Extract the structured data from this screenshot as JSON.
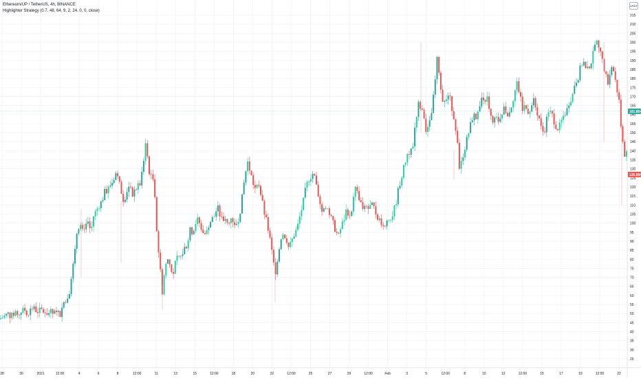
{
  "header": {
    "symbol_line": "Ethereum/UP / TetherUS, 4h, BINANCE",
    "indicator_line": "Highlighter Strategy (0.7, 48, 64, 9, 2, 24, 0, 0, close)",
    "currency": "USDT"
  },
  "colors": {
    "up": "#26a69a",
    "up_bright": "#22d3a0",
    "down": "#ef5350",
    "grid": "#f0f3fa",
    "crosshair": "#b2dfdb",
    "last_price_bg": "#26a69a",
    "low_price_bg": "#ef5350"
  },
  "price_labels": {
    "crosshair_value": "161.854",
    "low_value": "126.894"
  },
  "chart_data": {
    "type": "candlestick",
    "title": "Ethereum/UP / TetherUS, 4h, BINANCE",
    "ylim": [
      20,
      220
    ],
    "y_ticks": [
      25,
      30,
      35,
      40,
      45,
      50,
      55,
      60,
      65,
      70,
      75,
      80,
      85,
      90,
      95,
      100,
      105,
      110,
      115,
      120,
      125,
      130,
      135,
      140,
      145,
      150,
      155,
      160,
      165,
      170,
      175,
      180,
      185,
      190,
      195,
      200,
      205,
      210,
      215
    ],
    "x_ticks": [
      "28",
      "30",
      "2021",
      "12:00",
      "4",
      "6",
      "8",
      "12:00",
      "11",
      "13",
      "15",
      "12:00",
      "18",
      "20",
      "22",
      "12:00",
      "25",
      "27",
      "29",
      "12:00",
      "Feb",
      "3",
      "5",
      "12:00",
      "8",
      "10",
      "12",
      "12:00",
      "15",
      "17",
      "19",
      "12:00",
      "22"
    ],
    "grid": true,
    "crosshair_price": 161.854,
    "last_price": 126.894,
    "close_path": [
      [
        0,
        47
      ],
      [
        12,
        50
      ],
      [
        16,
        48
      ],
      [
        22,
        51
      ],
      [
        26,
        49
      ],
      [
        30,
        51
      ],
      [
        36,
        52
      ],
      [
        40,
        50
      ],
      [
        44,
        52
      ],
      [
        48,
        53
      ],
      [
        52,
        52
      ],
      [
        56,
        51
      ],
      [
        60,
        52
      ],
      [
        64,
        51
      ],
      [
        68,
        50
      ],
      [
        72,
        51
      ],
      [
        76,
        50
      ],
      [
        80,
        50
      ],
      [
        84,
        50
      ],
      [
        88,
        50
      ],
      [
        92,
        56
      ],
      [
        96,
        58
      ],
      [
        100,
        60
      ],
      [
        104,
        72
      ],
      [
        108,
        80
      ],
      [
        112,
        96
      ],
      [
        116,
        100
      ],
      [
        120,
        95
      ],
      [
        124,
        100
      ],
      [
        128,
        99
      ],
      [
        132,
        95
      ],
      [
        136,
        104
      ],
      [
        140,
        107
      ],
      [
        144,
        110
      ],
      [
        148,
        112
      ],
      [
        152,
        117
      ],
      [
        156,
        118
      ],
      [
        160,
        121
      ],
      [
        164,
        123
      ],
      [
        168,
        128
      ],
      [
        172,
        124
      ],
      [
        176,
        118
      ],
      [
        180,
        112
      ],
      [
        184,
        118
      ],
      [
        188,
        120
      ],
      [
        192,
        116
      ],
      [
        196,
        118
      ],
      [
        200,
        120
      ],
      [
        204,
        122
      ],
      [
        208,
        132
      ],
      [
        212,
        146
      ],
      [
        216,
        130
      ],
      [
        220,
        125
      ],
      [
        224,
        124
      ],
      [
        228,
        95
      ],
      [
        232,
        78
      ],
      [
        236,
        62
      ],
      [
        240,
        76
      ],
      [
        244,
        80
      ],
      [
        248,
        76
      ],
      [
        252,
        72
      ],
      [
        256,
        80
      ],
      [
        260,
        80
      ],
      [
        264,
        82
      ],
      [
        268,
        86
      ],
      [
        272,
        88
      ],
      [
        276,
        96
      ],
      [
        280,
        95
      ],
      [
        284,
        100
      ],
      [
        288,
        102
      ],
      [
        292,
        98
      ],
      [
        296,
        94
      ],
      [
        300,
        94
      ],
      [
        304,
        100
      ],
      [
        308,
        102
      ],
      [
        312,
        104
      ],
      [
        316,
        109
      ],
      [
        320,
        104
      ],
      [
        324,
        102
      ],
      [
        328,
        101
      ],
      [
        332,
        99
      ],
      [
        336,
        104
      ],
      [
        340,
        100
      ],
      [
        344,
        100
      ],
      [
        348,
        104
      ],
      [
        352,
        114
      ],
      [
        356,
        126
      ],
      [
        360,
        134
      ],
      [
        364,
        128
      ],
      [
        368,
        122
      ],
      [
        372,
        118
      ],
      [
        376,
        122
      ],
      [
        380,
        114
      ],
      [
        384,
        106
      ],
      [
        388,
        100
      ],
      [
        392,
        92
      ],
      [
        396,
        82
      ],
      [
        400,
        72
      ],
      [
        404,
        82
      ],
      [
        408,
        92
      ],
      [
        412,
        94
      ],
      [
        416,
        92
      ],
      [
        420,
        86
      ],
      [
        424,
        90
      ],
      [
        428,
        94
      ],
      [
        432,
        97
      ],
      [
        436,
        104
      ],
      [
        440,
        110
      ],
      [
        444,
        118
      ],
      [
        448,
        124
      ],
      [
        452,
        126
      ],
      [
        456,
        128
      ],
      [
        460,
        120
      ],
      [
        464,
        114
      ],
      [
        468,
        106
      ],
      [
        472,
        110
      ],
      [
        476,
        108
      ],
      [
        480,
        104
      ],
      [
        484,
        100
      ],
      [
        488,
        96
      ],
      [
        492,
        92
      ],
      [
        496,
        98
      ],
      [
        500,
        102
      ],
      [
        504,
        108
      ],
      [
        508,
        104
      ],
      [
        512,
        108
      ],
      [
        516,
        120
      ],
      [
        520,
        116
      ],
      [
        524,
        112
      ],
      [
        528,
        106
      ],
      [
        532,
        110
      ],
      [
        536,
        108
      ],
      [
        540,
        110
      ],
      [
        544,
        108
      ],
      [
        548,
        104
      ],
      [
        552,
        102
      ],
      [
        556,
        100
      ],
      [
        560,
        98
      ],
      [
        564,
        104
      ],
      [
        568,
        102
      ],
      [
        572,
        106
      ],
      [
        576,
        112
      ],
      [
        580,
        120
      ],
      [
        584,
        126
      ],
      [
        588,
        132
      ],
      [
        592,
        138
      ],
      [
        596,
        140
      ],
      [
        600,
        142
      ],
      [
        604,
        156
      ],
      [
        608,
        166
      ],
      [
        612,
        164
      ],
      [
        616,
        158
      ],
      [
        620,
        150
      ],
      [
        624,
        154
      ],
      [
        628,
        162
      ],
      [
        632,
        176
      ],
      [
        636,
        192
      ],
      [
        640,
        178
      ],
      [
        644,
        168
      ],
      [
        648,
        166
      ],
      [
        652,
        172
      ],
      [
        656,
        166
      ],
      [
        660,
        158
      ],
      [
        664,
        150
      ],
      [
        668,
        128
      ],
      [
        672,
        136
      ],
      [
        676,
        142
      ],
      [
        680,
        148
      ],
      [
        684,
        154
      ],
      [
        688,
        160
      ],
      [
        692,
        158
      ],
      [
        696,
        162
      ],
      [
        700,
        168
      ],
      [
        704,
        166
      ],
      [
        708,
        172
      ],
      [
        712,
        162
      ],
      [
        716,
        154
      ],
      [
        720,
        158
      ],
      [
        724,
        156
      ],
      [
        728,
        160
      ],
      [
        732,
        164
      ],
      [
        736,
        162
      ],
      [
        740,
        160
      ],
      [
        744,
        166
      ],
      [
        748,
        172
      ],
      [
        752,
        178
      ],
      [
        756,
        170
      ],
      [
        760,
        162
      ],
      [
        764,
        166
      ],
      [
        768,
        162
      ],
      [
        772,
        164
      ],
      [
        776,
        168
      ],
      [
        780,
        162
      ],
      [
        784,
        158
      ],
      [
        788,
        150
      ],
      [
        792,
        152
      ],
      [
        796,
        160
      ],
      [
        800,
        164
      ],
      [
        804,
        158
      ],
      [
        808,
        154
      ],
      [
        812,
        152
      ],
      [
        816,
        156
      ],
      [
        820,
        160
      ],
      [
        824,
        162
      ],
      [
        828,
        168
      ],
      [
        832,
        170
      ],
      [
        836,
        178
      ],
      [
        840,
        180
      ],
      [
        844,
        186
      ],
      [
        848,
        190
      ],
      [
        852,
        184
      ],
      [
        856,
        186
      ],
      [
        860,
        190
      ],
      [
        864,
        196
      ],
      [
        868,
        200
      ],
      [
        872,
        194
      ],
      [
        876,
        192
      ],
      [
        880,
        182
      ],
      [
        884,
        178
      ],
      [
        888,
        186
      ],
      [
        892,
        184
      ],
      [
        896,
        176
      ],
      [
        900,
        168
      ],
      [
        904,
        148
      ],
      [
        908,
        138
      ],
      [
        912,
        143
      ],
      [
        916,
        146
      ]
    ]
  }
}
